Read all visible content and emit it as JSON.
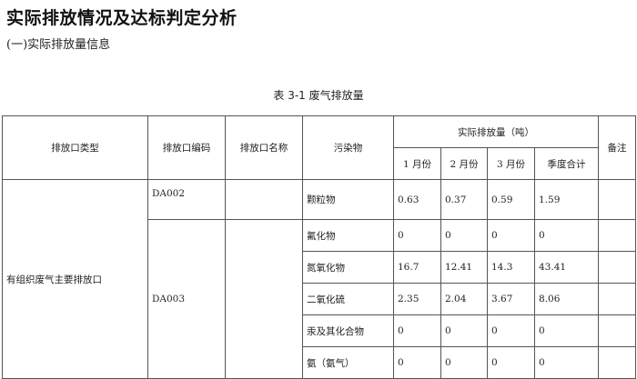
{
  "title": "实际排放情况及达标判定分析",
  "subtitle": "(一)实际排放量信息",
  "caption": "表 3-1 废气排放量",
  "headers": {
    "type": "排放口类型",
    "code": "排放口编码",
    "name": "排放口名称",
    "pollutant": "污染物",
    "actual": "实际排放量（吨）",
    "m1": "1 月份",
    "m2": "2 月份",
    "m3": "3 月份",
    "total": "季度合计",
    "remark": "备注"
  },
  "outlet_type": "有组织废气主要排放口",
  "rows": [
    {
      "code": "DA002",
      "pollutant": "颗粒物",
      "m1": "0.63",
      "m2": "0.37",
      "m3": "0.59",
      "total": "1.59"
    },
    {
      "code": "DA003",
      "pollutant": "氟化物",
      "m1": "0",
      "m2": "0",
      "m3": "0",
      "total": "0"
    },
    {
      "pollutant": "氮氧化物",
      "m1": "16.7",
      "m2": "12.41",
      "m3": "14.3",
      "total": "43.41"
    },
    {
      "pollutant": "二氧化硫",
      "m1": "2.35",
      "m2": "2.04",
      "m3": "3.67",
      "total": "8.06"
    },
    {
      "pollutant": "汞及其化合物",
      "m1": "0",
      "m2": "0",
      "m3": "0",
      "total": "0"
    },
    {
      "pollutant": "氨（氨气）",
      "m1": "0",
      "m2": "0",
      "m3": "0",
      "total": "0"
    }
  ]
}
